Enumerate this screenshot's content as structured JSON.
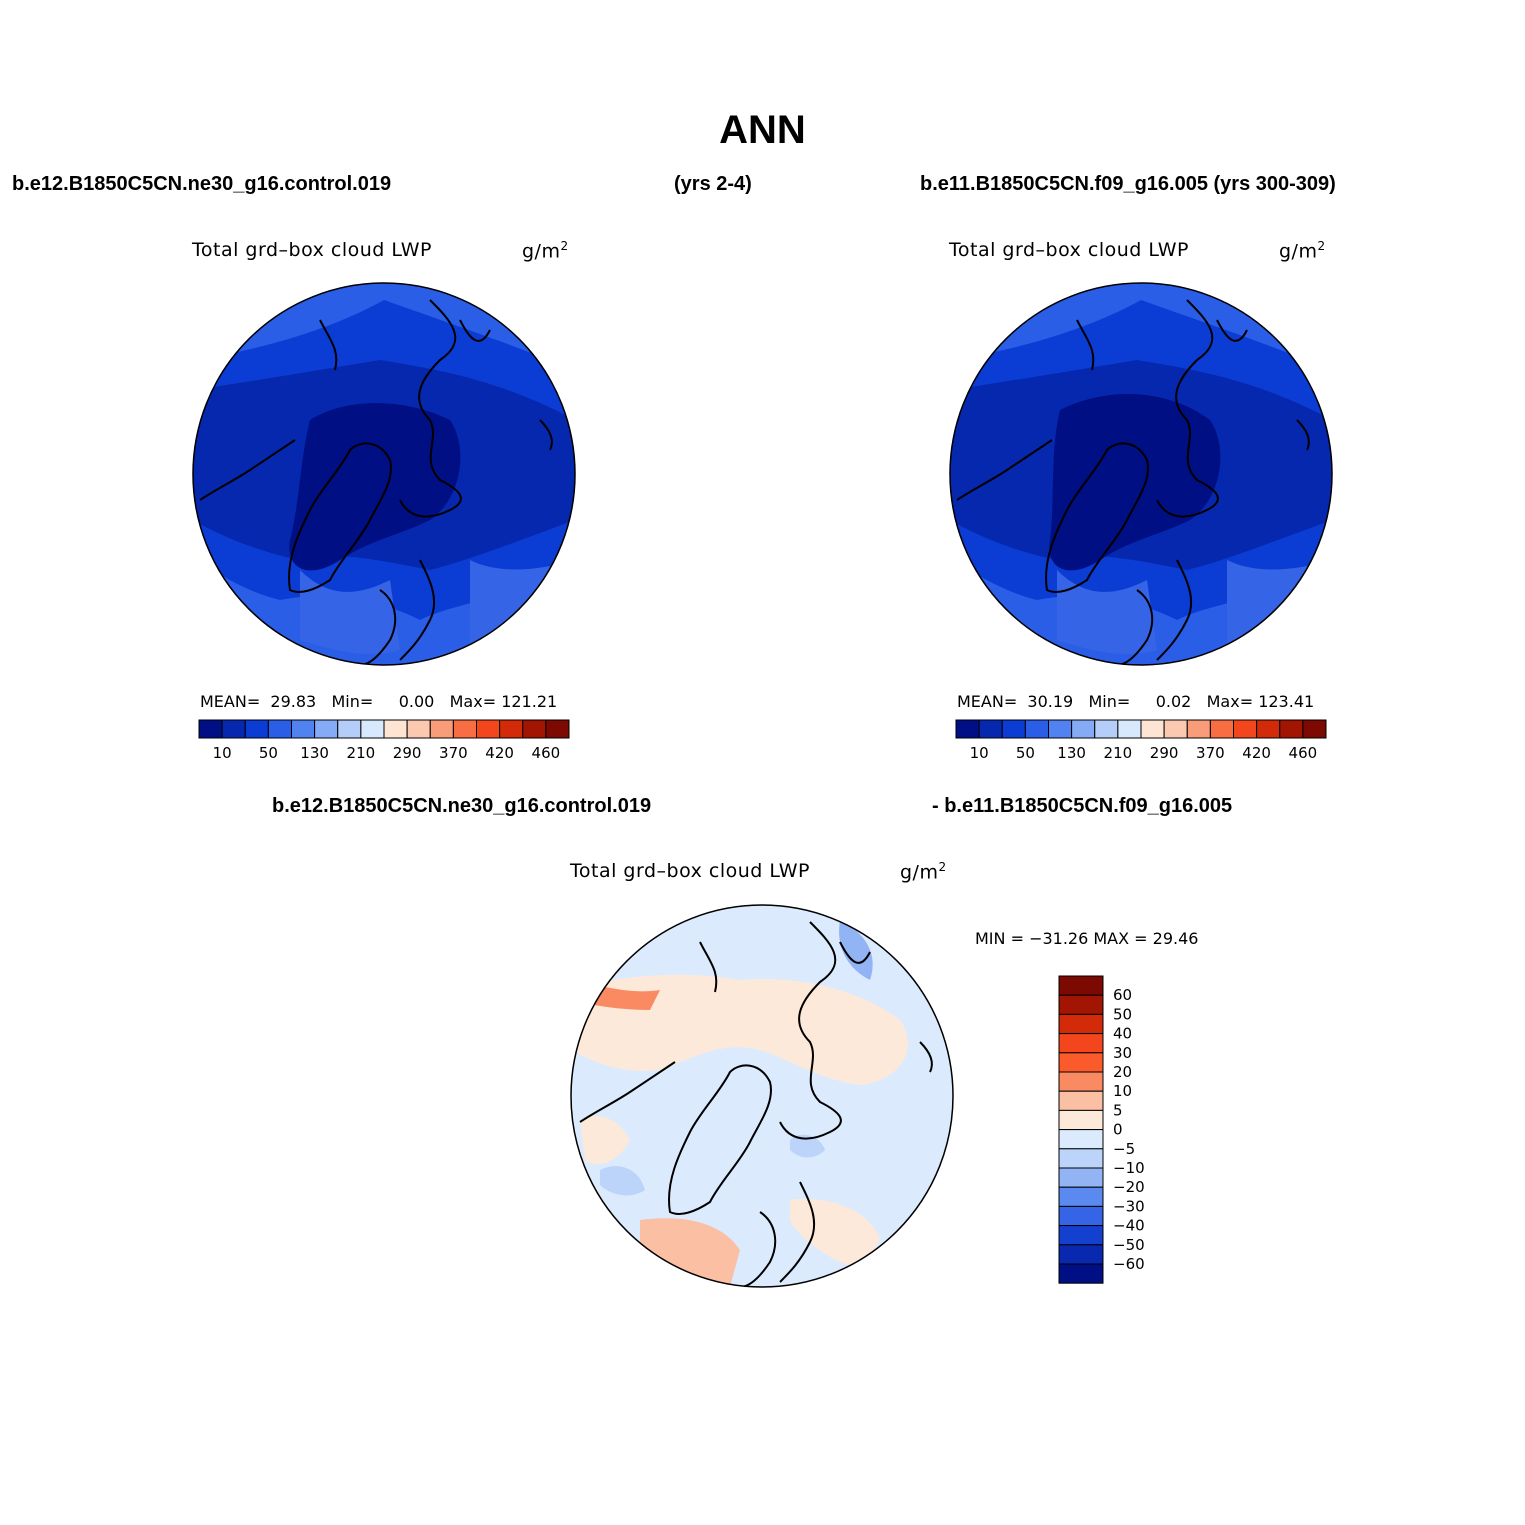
{
  "title": "ANN",
  "headers": {
    "case1": "b.e12.B1850C5CN.ne30_g16.control.019",
    "years1": "(yrs 2-4)",
    "case2": "b.e11.B1850C5CN.f09_g16.005 (yrs 300-309)",
    "diff_left": "b.e12.B1850C5CN.ne30_g16.control.019",
    "diff_right": "- b.e11.B1850C5CN.f09_g16.005"
  },
  "panels": [
    {
      "variable": "Total grd–box cloud LWP",
      "units": "g/m",
      "units_sup": "2",
      "mean_label": "MEAN=",
      "mean": "29.83",
      "min_label": "Min=",
      "min": "0.00",
      "max_label": "Max=",
      "max": "121.21"
    },
    {
      "variable": "Total grd–box cloud LWP",
      "units": "g/m",
      "units_sup": "2",
      "mean_label": "MEAN=",
      "mean": "30.19",
      "min_label": "Min=",
      "min": "0.02",
      "max_label": "Max=",
      "max": "123.41"
    }
  ],
  "colorbar": {
    "colors": [
      "#000f83",
      "#0628ae",
      "#0b3cd3",
      "#2a5ee7",
      "#5082f0",
      "#86abf6",
      "#b5cdf9",
      "#d9e9fd",
      "#fde4d3",
      "#fbc8b0",
      "#f99c7a",
      "#f96d43",
      "#f4461d",
      "#d32a09",
      "#a21503",
      "#7c0a02"
    ],
    "labels": [
      "10",
      "50",
      "130",
      "210",
      "290",
      "370",
      "420",
      "460"
    ]
  },
  "diff_panel": {
    "variable": "Total grd–box cloud LWP",
    "units": "g/m",
    "units_sup": "2",
    "minmax": "MIN = −31.26 MAX =  29.46",
    "colorbar_colors": [
      "#7c0a02",
      "#a21503",
      "#d32a09",
      "#f4461d",
      "#fb5a2b",
      "#f98a62",
      "#fbc0a4",
      "#fde9da",
      "#dbebfd",
      "#bcd3fa",
      "#92b4f5",
      "#5a89ef",
      "#3564e6",
      "#1440d0",
      "#0828b0",
      "#000f83"
    ],
    "colorbar_labels": [
      "60",
      "50",
      "40",
      "30",
      "20",
      "10",
      "5",
      "0",
      "−5",
      "−10",
      "−20",
      "−30",
      "−40",
      "−50",
      "−60"
    ]
  }
}
